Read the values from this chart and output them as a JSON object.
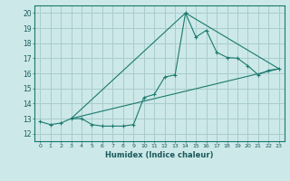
{
  "xlabel": "Humidex (Indice chaleur)",
  "ylabel": "",
  "bg_color": "#cce8e8",
  "grid_color": "#aacccc",
  "line_color": "#1a7a6e",
  "xlim": [
    -0.5,
    23.5
  ],
  "ylim": [
    11.5,
    20.5
  ],
  "xticks": [
    0,
    1,
    2,
    3,
    4,
    5,
    6,
    7,
    8,
    9,
    10,
    11,
    12,
    13,
    14,
    15,
    16,
    17,
    18,
    19,
    20,
    21,
    22,
    23
  ],
  "yticks": [
    12,
    13,
    14,
    15,
    16,
    17,
    18,
    19,
    20
  ],
  "series1_x": [
    0,
    1,
    2,
    3,
    4,
    5,
    6,
    7,
    8,
    9,
    10,
    11,
    12,
    13,
    14,
    15,
    16,
    17,
    18,
    19,
    20,
    21,
    22,
    23
  ],
  "series1_y": [
    12.8,
    12.6,
    12.7,
    13.0,
    13.0,
    12.6,
    12.5,
    12.5,
    12.5,
    12.6,
    14.4,
    14.6,
    15.75,
    15.9,
    20.0,
    18.4,
    18.85,
    17.4,
    17.05,
    17.0,
    16.5,
    15.9,
    16.2,
    16.3
  ],
  "series2_x": [
    3,
    23
  ],
  "series2_y": [
    13.0,
    16.3
  ],
  "series3_x": [
    3,
    14,
    23
  ],
  "series3_y": [
    13.0,
    20.0,
    16.3
  ]
}
